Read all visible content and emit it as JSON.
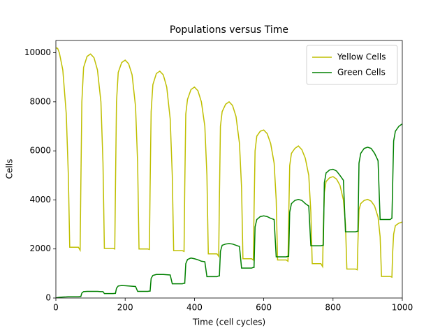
{
  "chart_data": {
    "type": "line",
    "title": "Populations versus Time",
    "x_label": "Time (cell cycles)",
    "y_label": "Cells",
    "x": [
      0,
      5,
      10,
      20,
      30,
      36,
      40,
      65,
      70,
      72,
      75,
      80,
      90,
      100,
      110,
      120,
      130,
      136,
      140,
      165,
      170,
      172,
      175,
      180,
      190,
      200,
      210,
      220,
      230,
      236,
      240,
      265,
      270,
      272,
      275,
      280,
      290,
      300,
      310,
      320,
      330,
      336,
      340,
      365,
      370,
      372,
      375,
      380,
      390,
      400,
      410,
      420,
      430,
      436,
      440,
      465,
      470,
      472,
      475,
      480,
      490,
      500,
      510,
      520,
      530,
      536,
      540,
      565,
      570,
      572,
      575,
      580,
      590,
      600,
      610,
      620,
      630,
      636,
      640,
      665,
      670,
      672,
      675,
      680,
      690,
      700,
      710,
      720,
      730,
      736,
      740,
      765,
      770,
      772,
      775,
      780,
      790,
      800,
      810,
      820,
      830,
      836,
      840,
      865,
      870,
      872,
      875,
      880,
      890,
      900,
      910,
      920,
      930,
      936,
      940,
      965,
      970,
      972,
      975,
      980,
      990,
      1000
    ],
    "series": [
      {
        "name": "Yellow Cells",
        "color": "#bfbf00",
        "values": [
          10200,
          10180,
          10000,
          9300,
          7500,
          5000,
          2070,
          2070,
          1950,
          4500,
          8000,
          9400,
          9850,
          9950,
          9800,
          9300,
          8000,
          5500,
          2020,
          2020,
          2000,
          4500,
          8000,
          9200,
          9600,
          9700,
          9550,
          9100,
          7800,
          5500,
          2000,
          2000,
          1980,
          4500,
          7600,
          8700,
          9150,
          9250,
          9100,
          8600,
          7300,
          5000,
          1930,
          1930,
          1900,
          4500,
          7500,
          8100,
          8500,
          8600,
          8450,
          8000,
          7000,
          5000,
          1800,
          1800,
          1700,
          4000,
          7000,
          7600,
          7900,
          8000,
          7850,
          7400,
          6300,
          4500,
          1600,
          1600,
          1550,
          3500,
          6000,
          6600,
          6800,
          6850,
          6700,
          6300,
          5500,
          4000,
          1550,
          1550,
          1500,
          3200,
          5400,
          5900,
          6100,
          6200,
          6050,
          5700,
          5000,
          3500,
          1400,
          1400,
          1280,
          2800,
          4300,
          4750,
          4900,
          4950,
          4850,
          4600,
          4000,
          3000,
          1180,
          1180,
          1150,
          2300,
          3600,
          3850,
          3980,
          4020,
          3950,
          3750,
          3300,
          2500,
          880,
          880,
          850,
          1800,
          2600,
          2950,
          3050,
          3100
        ]
      },
      {
        "name": "Green Cells",
        "color": "#008000",
        "values": [
          0,
          20,
          30,
          40,
          45,
          50,
          50,
          50,
          60,
          60,
          200,
          260,
          270,
          270,
          270,
          270,
          260,
          260,
          180,
          180,
          190,
          190,
          400,
          490,
          510,
          500,
          490,
          480,
          470,
          270,
          270,
          270,
          280,
          280,
          800,
          920,
          960,
          960,
          960,
          950,
          940,
          580,
          580,
          580,
          600,
          600,
          1400,
          1570,
          1630,
          1600,
          1560,
          1500,
          1480,
          870,
          870,
          870,
          900,
          900,
          1900,
          2150,
          2200,
          2220,
          2200,
          2150,
          2100,
          1220,
          1220,
          1220,
          1250,
          1250,
          2900,
          3200,
          3320,
          3350,
          3320,
          3250,
          3200,
          1680,
          1680,
          1680,
          1700,
          1700,
          3500,
          3850,
          3980,
          4020,
          3980,
          3850,
          3750,
          2130,
          2130,
          2130,
          2150,
          2150,
          4700,
          5100,
          5220,
          5250,
          5180,
          5000,
          4800,
          2700,
          2700,
          2700,
          2720,
          2720,
          5500,
          5900,
          6100,
          6150,
          6100,
          5900,
          5600,
          3200,
          3200,
          3200,
          3250,
          4500,
          6400,
          6800,
          7000,
          7100
        ]
      }
    ],
    "xlim": [
      0,
      1000
    ],
    "xticks": [
      0,
      200,
      400,
      600,
      800,
      1000
    ],
    "ylim": [
      0,
      10500
    ],
    "yticks": [
      0,
      2000,
      4000,
      6000,
      8000,
      10000
    ],
    "legend": "upper right"
  }
}
